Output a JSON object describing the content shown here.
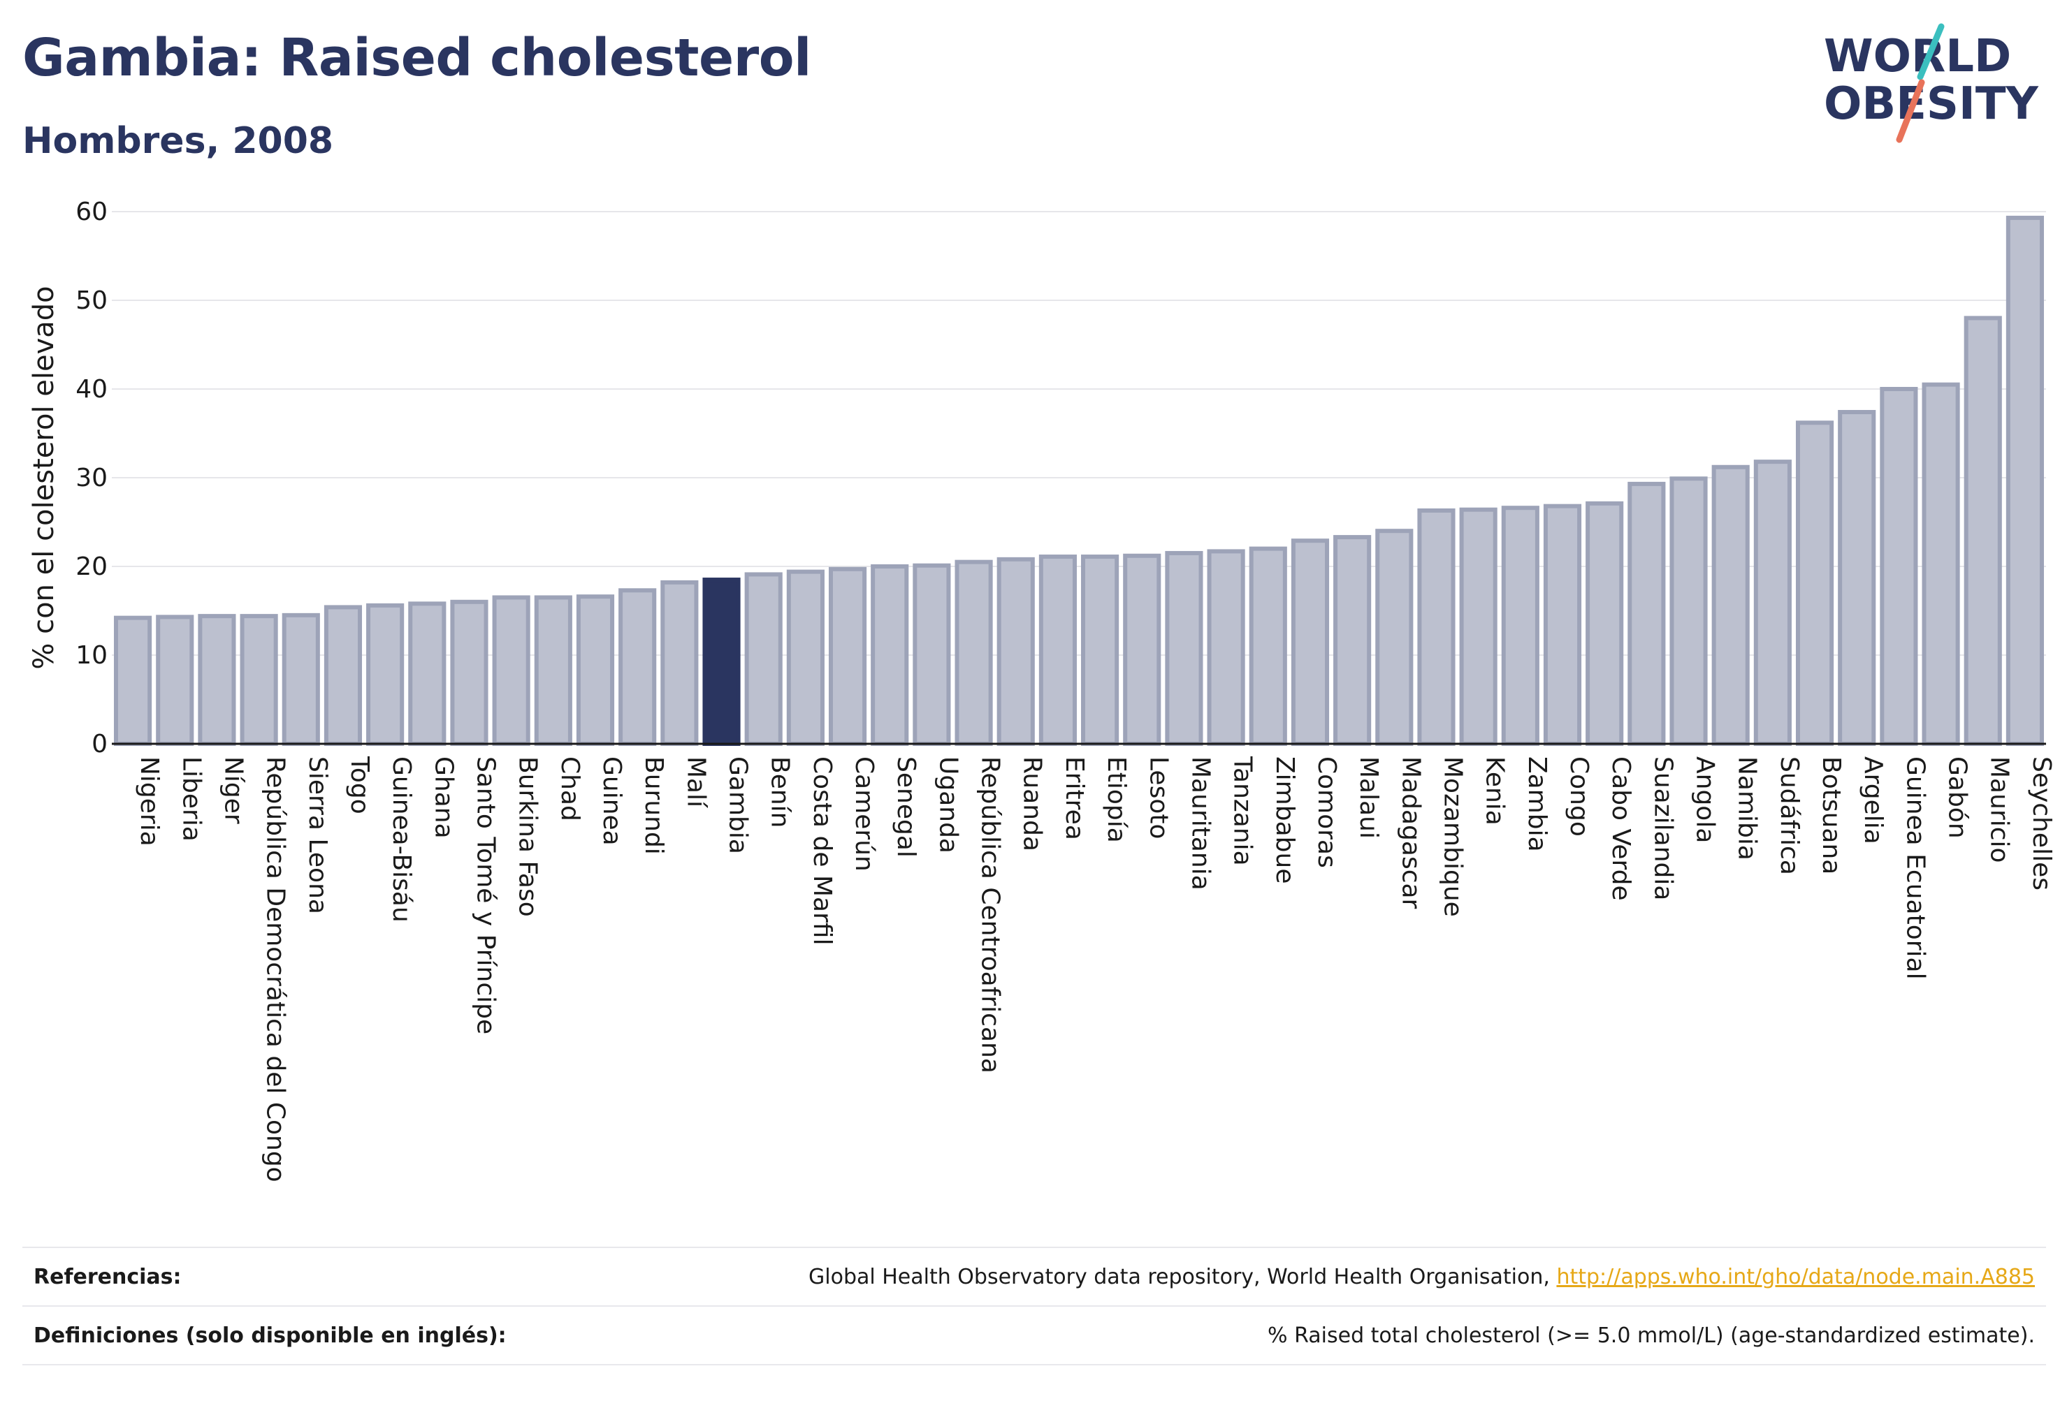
{
  "header": {
    "title": "Gambia: Raised cholesterol",
    "subtitle": "Hombres, 2008",
    "logo_line1": "WORLD",
    "logo_line2": "OBESITY"
  },
  "colors": {
    "bar": "#bcc0cf",
    "bar_stroke": "#9da3b8",
    "highlight": "#2a3560",
    "title": "#2a3560",
    "link": "#e6a817",
    "logo_teal": "#3bbfbf",
    "logo_red": "#e8735a"
  },
  "chart_data": {
    "type": "bar",
    "ylabel": "% con el colesterol elevado",
    "ylim": [
      0,
      60
    ],
    "yticks": [
      0,
      10,
      20,
      30,
      40,
      50,
      60
    ],
    "grid": true,
    "highlight": "Gambia",
    "categories": [
      "Nigeria",
      "Liberia",
      "Níger",
      "República Democrática del Congo",
      "Sierra Leona",
      "Togo",
      "Guinea-Bisáu",
      "Ghana",
      "Santo Tomé y Príncipe",
      "Burkina Faso",
      "Chad",
      "Guinea",
      "Burundi",
      "Malí",
      "Gambia",
      "Benín",
      "Costa de Marfil",
      "Camerún",
      "Senegal",
      "Uganda",
      "República Centroafricana",
      "Ruanda",
      "Eritrea",
      "Etiopía",
      "Lesoto",
      "Mauritania",
      "Tanzania",
      "Zimbabue",
      "Comoras",
      "Malaui",
      "Madagascar",
      "Mozambique",
      "Kenia",
      "Zambia",
      "Congo",
      "Cabo Verde",
      "Suazilandia",
      "Angola",
      "Namibia",
      "Sudáfrica",
      "Botsuana",
      "Argelia",
      "Guinea Ecuatorial",
      "Gabón",
      "Mauricio",
      "Seychelles"
    ],
    "values": [
      14.2,
      14.3,
      14.4,
      14.4,
      14.5,
      15.4,
      15.6,
      15.8,
      16.0,
      16.5,
      16.5,
      16.6,
      17.3,
      18.2,
      18.5,
      19.1,
      19.4,
      19.7,
      20.0,
      20.1,
      20.5,
      20.8,
      21.1,
      21.1,
      21.2,
      21.5,
      21.7,
      22.0,
      22.9,
      23.3,
      24.0,
      26.3,
      26.4,
      26.6,
      26.8,
      27.1,
      29.3,
      29.9,
      31.2,
      31.8,
      36.2,
      37.4,
      40.0,
      40.5,
      48.0,
      59.3
    ]
  },
  "footer": {
    "references_label": "Referencias:",
    "references_text": "Global Health Observatory data repository, World Health Organisation, ",
    "references_link": "http://apps.who.int/gho/data/node.main.A885",
    "definitions_label": "Definiciones (solo disponible en inglés):",
    "definitions_text": "% Raised total cholesterol (>= 5.0 mmol/L) (age-standardized estimate)."
  }
}
